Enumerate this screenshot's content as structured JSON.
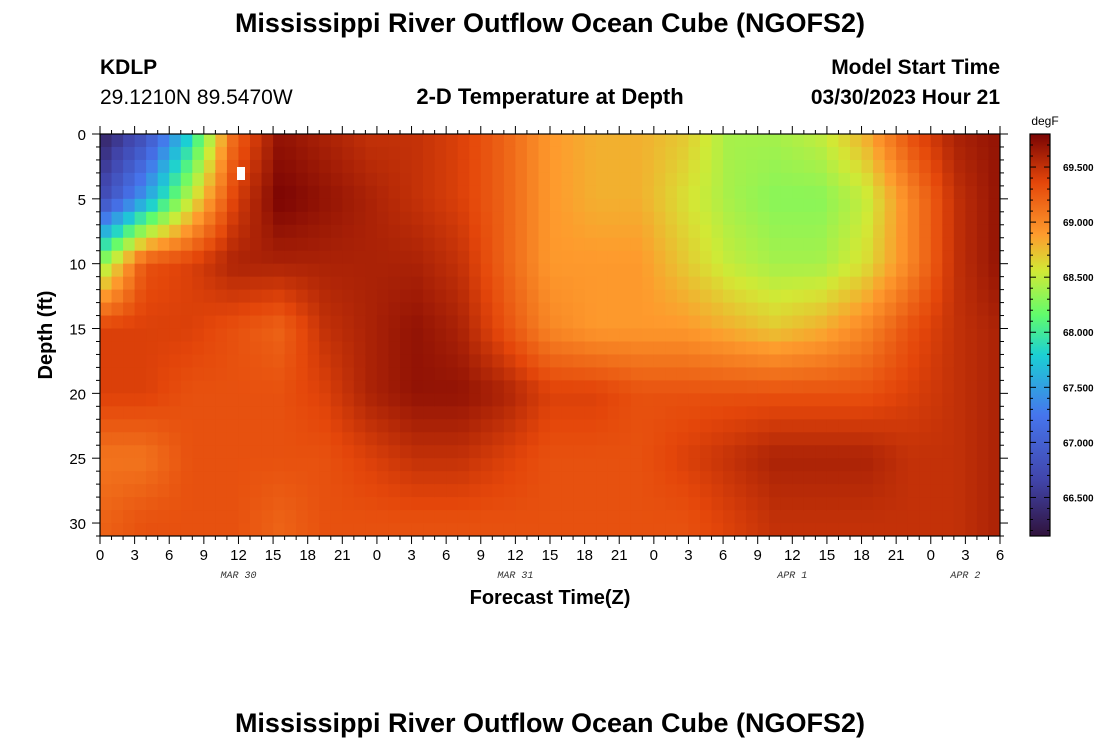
{
  "header": {
    "title": "Mississippi River Outflow Ocean Cube (NGOFS2)",
    "station": "KDLP",
    "coords": "29.1210N  89.5470W",
    "subtitle": "2-D Temperature at Depth",
    "model_start_label": "Model Start Time",
    "model_start_value": "03/30/2023 Hour 21"
  },
  "footer": {
    "title": "Mississippi River Outflow Ocean Cube (NGOFS2)"
  },
  "chart_data": {
    "type": "heatmap",
    "title": "2-D Temperature at Depth",
    "xlabel": "Forecast Time(Z)",
    "ylabel": "Depth (ft)",
    "colorbar_unit": "degF",
    "colorbar_ticks": [
      "66.500",
      "67.000",
      "67.500",
      "68.000",
      "68.500",
      "69.000",
      "69.500"
    ],
    "colorbar_range": [
      66.15,
      69.8
    ],
    "x_ticks": [
      "0",
      "3",
      "6",
      "9",
      "12",
      "15",
      "18",
      "21",
      "0",
      "3",
      "6",
      "9",
      "12",
      "15",
      "18",
      "21",
      "0",
      "3",
      "6",
      "9",
      "12",
      "15",
      "18",
      "21",
      "0",
      "3",
      "6"
    ],
    "x_range_hours": [
      0,
      78
    ],
    "date_labels": [
      {
        "text": "MAR 30",
        "hour": 12
      },
      {
        "text": "MAR 31",
        "hour": 36
      },
      {
        "text": "APR 1",
        "hour": 60
      },
      {
        "text": "APR 2",
        "hour": 75
      }
    ],
    "y_ticks": [
      "0",
      "5",
      "10",
      "15",
      "20",
      "25",
      "30"
    ],
    "y_range_ft": [
      0,
      31
    ],
    "temperature_degF_by_depth": {
      "0": [
        66.3,
        66.8,
        67.8,
        69.2,
        69.7,
        69.6,
        69.5,
        69.5,
        69.4,
        69.2,
        68.9,
        68.8,
        68.8,
        68.7,
        68.4,
        68.4,
        68.5,
        68.8,
        69.3,
        69.6,
        69.7
      ],
      "5": [
        66.7,
        67.5,
        68.5,
        69.4,
        69.8,
        69.7,
        69.6,
        69.5,
        69.4,
        69.2,
        68.9,
        68.8,
        68.8,
        68.6,
        68.4,
        68.3,
        68.3,
        68.5,
        69.0,
        69.5,
        69.7
      ],
      "10": [
        68.3,
        69.3,
        69.4,
        69.6,
        69.6,
        69.6,
        69.6,
        69.6,
        69.5,
        69.2,
        68.9,
        68.9,
        68.9,
        68.7,
        68.5,
        68.4,
        68.4,
        68.6,
        69.0,
        69.5,
        69.7
      ],
      "15": [
        69.4,
        69.4,
        69.4,
        69.3,
        69.2,
        69.5,
        69.6,
        69.7,
        69.6,
        69.3,
        69.0,
        68.9,
        68.9,
        68.9,
        68.8,
        68.7,
        68.8,
        69.0,
        69.3,
        69.5,
        69.6
      ],
      "20": [
        69.4,
        69.4,
        69.3,
        69.3,
        69.3,
        69.4,
        69.6,
        69.7,
        69.7,
        69.6,
        69.4,
        69.4,
        69.3,
        69.3,
        69.3,
        69.3,
        69.3,
        69.3,
        69.4,
        69.5,
        69.6
      ],
      "25": [
        69.1,
        69.1,
        69.3,
        69.3,
        69.3,
        69.3,
        69.4,
        69.5,
        69.5,
        69.4,
        69.3,
        69.3,
        69.3,
        69.4,
        69.5,
        69.6,
        69.6,
        69.6,
        69.5,
        69.5,
        69.6
      ],
      "30": [
        69.2,
        69.3,
        69.3,
        69.3,
        69.2,
        69.3,
        69.3,
        69.3,
        69.3,
        69.3,
        69.3,
        69.3,
        69.3,
        69.3,
        69.4,
        69.5,
        69.5,
        69.5,
        69.5,
        69.5,
        69.6
      ]
    },
    "grid": false,
    "legend": "right colorbar"
  }
}
